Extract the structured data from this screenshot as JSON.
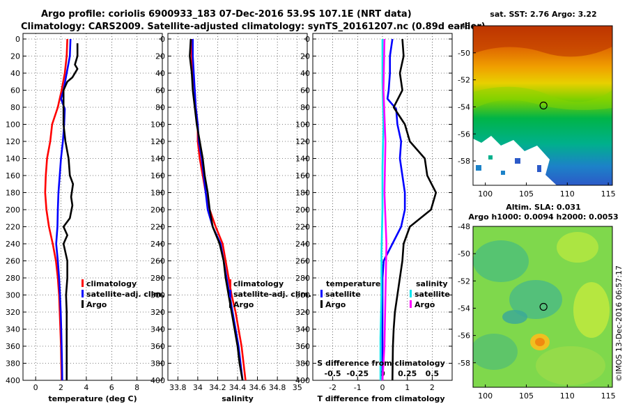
{
  "title_line1": "Argo profile: coriolis 6900933_183 07-Dec-2016 53.9S 107.1E (NRT data)",
  "title_line2": "Climatology: CARS2009. Satellite-adjusted climatology: synTS_20161207.nc (0.89d earlier)",
  "chart_data": [
    {
      "type": "line",
      "panel": "temperature",
      "xlabel": "temperature (deg C)",
      "ylabel": "",
      "xlim": [
        -1,
        10
      ],
      "ylim": [
        400,
        0
      ],
      "xticks": [
        "0",
        "2",
        "4",
        "6",
        "8"
      ],
      "yticks": [
        "0",
        "20",
        "40",
        "60",
        "80",
        "100",
        "120",
        "140",
        "160",
        "180",
        "200",
        "220",
        "240",
        "260",
        "280",
        "300",
        "320",
        "340",
        "360",
        "380",
        "400"
      ],
      "legend": [
        "climatology",
        "satellite-adj. clim.",
        "Argo"
      ],
      "series": [
        {
          "name": "climatology",
          "color": "#ff0000",
          "points": [
            [
              2.5,
              0
            ],
            [
              2.45,
              20
            ],
            [
              2.3,
              40
            ],
            [
              2.05,
              60
            ],
            [
              1.75,
              80
            ],
            [
              1.3,
              100
            ],
            [
              1.15,
              120
            ],
            [
              0.9,
              140
            ],
            [
              0.8,
              160
            ],
            [
              0.75,
              180
            ],
            [
              0.85,
              200
            ],
            [
              1.05,
              220
            ],
            [
              1.35,
              240
            ],
            [
              1.6,
              260
            ],
            [
              1.75,
              280
            ],
            [
              1.85,
              300
            ],
            [
              1.9,
              320
            ],
            [
              1.95,
              340
            ],
            [
              2.0,
              360
            ],
            [
              2.02,
              380
            ],
            [
              2.05,
              400
            ]
          ]
        },
        {
          "name": "satellite-adj. clim.",
          "color": "#0000ff",
          "points": [
            [
              2.75,
              0
            ],
            [
              2.7,
              20
            ],
            [
              2.45,
              40
            ],
            [
              2.2,
              60
            ],
            [
              2.0,
              70
            ],
            [
              2.3,
              82
            ],
            [
              2.25,
              100
            ],
            [
              2.15,
              120
            ],
            [
              2.0,
              140
            ],
            [
              1.9,
              160
            ],
            [
              1.8,
              180
            ],
            [
              1.75,
              200
            ],
            [
              1.72,
              220
            ],
            [
              1.62,
              240
            ],
            [
              1.75,
              260
            ],
            [
              1.85,
              280
            ],
            [
              1.92,
              300
            ],
            [
              1.98,
              320
            ],
            [
              2.02,
              340
            ],
            [
              2.05,
              360
            ],
            [
              2.08,
              380
            ],
            [
              2.1,
              400
            ]
          ]
        },
        {
          "name": "Argo",
          "color": "#000000",
          "points": [
            [
              3.3,
              5
            ],
            [
              3.3,
              20
            ],
            [
              3.1,
              30
            ],
            [
              3.3,
              35
            ],
            [
              2.9,
              45
            ],
            [
              2.5,
              50
            ],
            [
              2.2,
              60
            ],
            [
              2.2,
              100
            ],
            [
              2.35,
              120
            ],
            [
              2.6,
              140
            ],
            [
              2.7,
              160
            ],
            [
              2.95,
              170
            ],
            [
              2.8,
              185
            ],
            [
              2.9,
              195
            ],
            [
              2.7,
              210
            ],
            [
              2.2,
              220
            ],
            [
              2.5,
              230
            ],
            [
              2.2,
              240
            ],
            [
              2.5,
              260
            ],
            [
              2.5,
              280
            ],
            [
              2.4,
              300
            ],
            [
              2.45,
              320
            ],
            [
              2.45,
              400
            ]
          ]
        }
      ]
    },
    {
      "type": "line",
      "panel": "salinity",
      "xlabel": "salinity",
      "xlim": [
        33.7,
        35.1
      ],
      "ylim": [
        400,
        0
      ],
      "xticks": [
        "33.8",
        "34",
        "34.2",
        "34.4",
        "34.6",
        "34.8",
        "35"
      ],
      "legend": [
        "climatology",
        "satellite-adj. clim.",
        "Argo"
      ],
      "series": [
        {
          "name": "climatology",
          "color": "#ff0000",
          "points": [
            [
              33.94,
              0
            ],
            [
              33.94,
              20
            ],
            [
              33.95,
              40
            ],
            [
              33.97,
              60
            ],
            [
              33.98,
              80
            ],
            [
              34.0,
              100
            ],
            [
              34.0,
              120
            ],
            [
              34.02,
              140
            ],
            [
              34.05,
              160
            ],
            [
              34.08,
              180
            ],
            [
              34.12,
              200
            ],
            [
              34.18,
              220
            ],
            [
              34.25,
              240
            ],
            [
              34.28,
              260
            ],
            [
              34.31,
              280
            ],
            [
              34.34,
              300
            ],
            [
              34.38,
              320
            ],
            [
              34.41,
              340
            ],
            [
              34.44,
              360
            ],
            [
              34.46,
              380
            ],
            [
              34.48,
              400
            ]
          ]
        },
        {
          "name": "satellite-adj. clim.",
          "color": "#0000ff",
          "points": [
            [
              33.95,
              0
            ],
            [
              33.95,
              20
            ],
            [
              33.96,
              40
            ],
            [
              33.97,
              60
            ],
            [
              33.98,
              80
            ],
            [
              34.0,
              100
            ],
            [
              34.01,
              120
            ],
            [
              34.04,
              140
            ],
            [
              34.06,
              160
            ],
            [
              34.08,
              180
            ],
            [
              34.1,
              200
            ],
            [
              34.15,
              220
            ],
            [
              34.23,
              240
            ],
            [
              34.26,
              260
            ],
            [
              34.29,
              280
            ],
            [
              34.32,
              300
            ],
            [
              34.35,
              320
            ],
            [
              34.38,
              340
            ],
            [
              34.41,
              360
            ],
            [
              34.43,
              380
            ],
            [
              34.45,
              400
            ]
          ]
        },
        {
          "name": "Argo",
          "color": "#000000",
          "points": [
            [
              33.93,
              0
            ],
            [
              33.92,
              20
            ],
            [
              33.94,
              40
            ],
            [
              33.95,
              60
            ],
            [
              33.97,
              80
            ],
            [
              33.99,
              100
            ],
            [
              34.02,
              120
            ],
            [
              34.05,
              140
            ],
            [
              34.07,
              160
            ],
            [
              34.1,
              180
            ],
            [
              34.12,
              200
            ],
            [
              34.15,
              220
            ],
            [
              34.22,
              240
            ],
            [
              34.26,
              260
            ],
            [
              34.28,
              280
            ],
            [
              34.31,
              300
            ],
            [
              34.34,
              320
            ],
            [
              34.37,
              340
            ],
            [
              34.4,
              360
            ],
            [
              34.42,
              380
            ],
            [
              34.45,
              400
            ]
          ]
        }
      ]
    },
    {
      "type": "line",
      "panel": "difference",
      "xlabel": "T difference from climatology",
      "top_xlabel": "S difference from climatology",
      "xlim": [
        -2.8,
        2.8
      ],
      "top_xlim": [
        -0.7,
        0.7
      ],
      "ylim": [
        400,
        0
      ],
      "xticks": [
        "-2",
        "-1",
        "0",
        "1",
        "2"
      ],
      "top_xticks": [
        "-0.5",
        "-0.25",
        "0",
        "0.25",
        "0.5"
      ],
      "legend_left_title": "temperature",
      "legend_left": [
        "satellite",
        "Argo"
      ],
      "legend_right_title": "salinity",
      "legend_right": [
        "satellite",
        "Argo"
      ],
      "series": [
        {
          "name": "T satellite",
          "color": "#0000ff",
          "points": [
            [
              0.4,
              0
            ],
            [
              0.3,
              20
            ],
            [
              0.3,
              40
            ],
            [
              0.25,
              60
            ],
            [
              0.2,
              70
            ],
            [
              0.55,
              82
            ],
            [
              0.6,
              100
            ],
            [
              0.75,
              120
            ],
            [
              0.7,
              140
            ],
            [
              0.8,
              160
            ],
            [
              0.9,
              180
            ],
            [
              0.9,
              200
            ],
            [
              0.75,
              220
            ],
            [
              0.4,
              240
            ],
            [
              0.05,
              260
            ],
            [
              0.0,
              280
            ],
            [
              0.0,
              300
            ],
            [
              0.0,
              320
            ],
            [
              0.0,
              400
            ]
          ]
        },
        {
          "name": "T Argo",
          "color": "#000000",
          "points": [
            [
              0.8,
              0
            ],
            [
              0.85,
              20
            ],
            [
              0.7,
              40
            ],
            [
              0.8,
              60
            ],
            [
              0.45,
              80
            ],
            [
              0.9,
              100
            ],
            [
              1.1,
              120
            ],
            [
              1.7,
              140
            ],
            [
              1.8,
              160
            ],
            [
              2.15,
              180
            ],
            [
              1.95,
              200
            ],
            [
              1.1,
              220
            ],
            [
              0.85,
              240
            ],
            [
              0.8,
              260
            ],
            [
              0.7,
              280
            ],
            [
              0.6,
              300
            ],
            [
              0.5,
              320
            ],
            [
              0.45,
              340
            ],
            [
              0.42,
              360
            ],
            [
              0.4,
              400
            ]
          ]
        },
        {
          "name": "S satellite",
          "color": "#00e5ee",
          "points": [
            [
              0.0,
              0
            ],
            [
              0.0,
              50
            ],
            [
              0.01,
              100
            ],
            [
              0.0,
              150
            ],
            [
              0.0,
              200
            ],
            [
              -0.01,
              250
            ],
            [
              -0.01,
              300
            ],
            [
              -0.02,
              350
            ],
            [
              -0.02,
              400
            ]
          ]
        },
        {
          "name": "S Argo",
          "color": "#ff00ff",
          "points": [
            [
              0.02,
              0
            ],
            [
              0.01,
              60
            ],
            [
              0.03,
              120
            ],
            [
              0.02,
              180
            ],
            [
              0.04,
              240
            ],
            [
              0.03,
              300
            ],
            [
              0.02,
              360
            ],
            [
              0.0,
              400
            ]
          ]
        }
      ]
    },
    {
      "type": "heatmap",
      "panel": "sst_map",
      "title": "sat. SST: 2.76 Argo: 3.22",
      "xlim": [
        98.5,
        115.5
      ],
      "ylim": [
        -59.8,
        -48
      ],
      "xticks": [
        "100",
        "105",
        "110",
        "115"
      ],
      "yticks": [
        "-48",
        "-50",
        "-52",
        "-54",
        "-56",
        "-58"
      ],
      "marker": {
        "lon": 107.1,
        "lat": -53.9
      }
    },
    {
      "type": "heatmap",
      "panel": "sla_map",
      "title": "Altim. SLA: 0.031",
      "subtitle": "Argo h1000: 0.0094 h2000: 0.0053",
      "xlim": [
        98.5,
        115.5
      ],
      "ylim": [
        -59.8,
        -48
      ],
      "xticks": [
        "100",
        "105",
        "110",
        "115"
      ],
      "yticks": [
        "-48",
        "-50",
        "-52",
        "-54",
        "-56",
        "-58"
      ],
      "marker": {
        "lon": 107.1,
        "lat": -53.9
      }
    }
  ],
  "credit": "©IMOS 13-Dec-2016 06:57:17"
}
